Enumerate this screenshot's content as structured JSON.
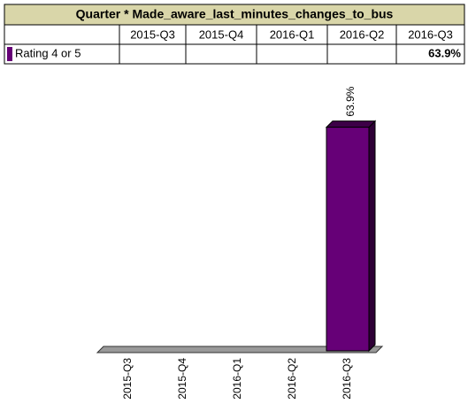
{
  "chart_data": {
    "type": "bar",
    "title": "Quarter * Made_aware_last_minutes_changes_to_bus",
    "categories": [
      "2015-Q3",
      "2015-Q4",
      "2016-Q1",
      "2016-Q2",
      "2016-Q3"
    ],
    "series": [
      {
        "name": "Rating 4 or 5",
        "color": "#660077",
        "values": [
          null,
          null,
          null,
          null,
          63.9
        ],
        "value_labels": [
          null,
          null,
          null,
          null,
          "63.9%"
        ]
      }
    ]
  }
}
